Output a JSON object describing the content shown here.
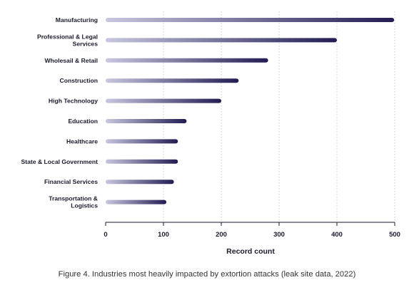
{
  "chart_data": {
    "type": "bar",
    "orientation": "horizontal",
    "categories": [
      [
        "Manufacturing"
      ],
      [
        "Professional & Legal",
        "Services"
      ],
      [
        "Wholesail & Retail"
      ],
      [
        "Construction"
      ],
      [
        "High Technology"
      ],
      [
        "Education"
      ],
      [
        "Healthcare"
      ],
      [
        "State & Local Government"
      ],
      [
        "Financial Services"
      ],
      [
        "Transportation &",
        "Logistics"
      ]
    ],
    "values": [
      499,
      400,
      281,
      230,
      200,
      140,
      125,
      125,
      118,
      105
    ],
    "xlabel": "Record count",
    "xlim": [
      0,
      500
    ],
    "xticks": [
      0,
      100,
      200,
      300,
      400,
      500
    ],
    "grid": "vertical dotted",
    "colors": {
      "bar_start": "#c8c7df",
      "bar_end": "#221c52",
      "grid": "#c8c8c8",
      "axis": "#1a1a2e"
    }
  },
  "caption": "Figure 4. Industries most heavily impacted by extortion attacks (leak site data, 2022)"
}
